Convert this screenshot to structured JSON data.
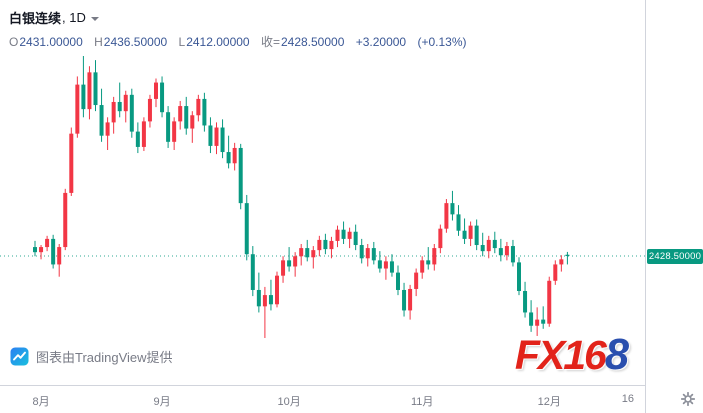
{
  "header": {
    "symbol": "白银连续",
    "interval_text": ", 1D",
    "ohlc": {
      "o_label": "O",
      "o_value": "2431.00000",
      "h_label": "H",
      "h_value": "2436.50000",
      "l_label": "L",
      "l_value": "2412.00000",
      "close_label": "收=",
      "close_value": "2428.50000",
      "change": "+3.20000",
      "change_pct": "(+0.13%)"
    }
  },
  "price_axis": {
    "last_label": "2428.50000"
  },
  "footer": {
    "attribution": "图表由TradingView提供"
  },
  "logo": {
    "red_part": "FX16",
    "blue_part": "8"
  },
  "theme": {
    "up_color": "#f23645",
    "down_color": "#089981",
    "value_text_color": "#3a5795",
    "muted_text_color": "#787b86",
    "axis_border_color": "#d1d4dc",
    "fx168_red": "#e2231a",
    "fx168_blue": "#2a4fae"
  },
  "chart_data": {
    "type": "candlestick",
    "title": "白银连续 1D",
    "xlabel": "",
    "ylabel": "",
    "legend": [],
    "grid": false,
    "up_color": "#f23645",
    "down_color": "#089981",
    "last_price": 2428.5,
    "last_price_label": "2428.50000",
    "price_range_estimate": [
      2268,
      2820
    ],
    "x_ticks": [
      {
        "label": "8月",
        "i": 1
      },
      {
        "label": "9月",
        "i": 21
      },
      {
        "label": "10月",
        "i": 42
      },
      {
        "label": "11月",
        "i": 64
      },
      {
        "label": "12月",
        "i": 85
      },
      {
        "label": "16",
        "i": 98
      }
    ],
    "candles": [
      [
        2446,
        2458,
        2428,
        2436
      ],
      [
        2436,
        2450,
        2422,
        2446
      ],
      [
        2446,
        2468,
        2438,
        2462
      ],
      [
        2462,
        2470,
        2404,
        2412
      ],
      [
        2412,
        2452,
        2388,
        2446
      ],
      [
        2446,
        2560,
        2440,
        2552
      ],
      [
        2552,
        2680,
        2546,
        2668
      ],
      [
        2668,
        2780,
        2660,
        2764
      ],
      [
        2764,
        2820,
        2700,
        2716
      ],
      [
        2716,
        2800,
        2696,
        2788
      ],
      [
        2788,
        2812,
        2712,
        2724
      ],
      [
        2724,
        2756,
        2652,
        2664
      ],
      [
        2664,
        2700,
        2636,
        2690
      ],
      [
        2690,
        2740,
        2668,
        2730
      ],
      [
        2730,
        2768,
        2700,
        2712
      ],
      [
        2712,
        2752,
        2690,
        2744
      ],
      [
        2744,
        2756,
        2660,
        2672
      ],
      [
        2672,
        2690,
        2630,
        2642
      ],
      [
        2642,
        2700,
        2634,
        2692
      ],
      [
        2692,
        2744,
        2680,
        2736
      ],
      [
        2736,
        2776,
        2720,
        2768
      ],
      [
        2768,
        2780,
        2700,
        2710
      ],
      [
        2710,
        2722,
        2640,
        2652
      ],
      [
        2652,
        2700,
        2636,
        2692
      ],
      [
        2692,
        2732,
        2676,
        2722
      ],
      [
        2722,
        2740,
        2666,
        2678
      ],
      [
        2678,
        2712,
        2650,
        2704
      ],
      [
        2704,
        2744,
        2692,
        2736
      ],
      [
        2736,
        2748,
        2672,
        2684
      ],
      [
        2684,
        2700,
        2630,
        2644
      ],
      [
        2644,
        2690,
        2628,
        2680
      ],
      [
        2680,
        2696,
        2620,
        2632
      ],
      [
        2632,
        2664,
        2600,
        2610
      ],
      [
        2610,
        2650,
        2596,
        2640
      ],
      [
        2640,
        2648,
        2520,
        2532
      ],
      [
        2532,
        2548,
        2420,
        2432
      ],
      [
        2432,
        2448,
        2350,
        2362
      ],
      [
        2362,
        2396,
        2318,
        2330
      ],
      [
        2330,
        2368,
        2268,
        2352
      ],
      [
        2352,
        2382,
        2322,
        2334
      ],
      [
        2334,
        2398,
        2328,
        2390
      ],
      [
        2390,
        2428,
        2376,
        2420
      ],
      [
        2420,
        2446,
        2398,
        2408
      ],
      [
        2408,
        2436,
        2388,
        2428
      ],
      [
        2428,
        2452,
        2410,
        2444
      ],
      [
        2444,
        2460,
        2418,
        2426
      ],
      [
        2426,
        2448,
        2404,
        2440
      ],
      [
        2440,
        2468,
        2428,
        2460
      ],
      [
        2460,
        2472,
        2432,
        2442
      ],
      [
        2442,
        2466,
        2424,
        2458
      ],
      [
        2458,
        2488,
        2446,
        2480
      ],
      [
        2480,
        2496,
        2452,
        2462
      ],
      [
        2462,
        2484,
        2444,
        2476
      ],
      [
        2476,
        2490,
        2440,
        2450
      ],
      [
        2450,
        2462,
        2414,
        2424
      ],
      [
        2424,
        2452,
        2408,
        2444
      ],
      [
        2444,
        2456,
        2412,
        2420
      ],
      [
        2420,
        2438,
        2396,
        2404
      ],
      [
        2404,
        2428,
        2382,
        2418
      ],
      [
        2418,
        2432,
        2388,
        2396
      ],
      [
        2396,
        2410,
        2352,
        2362
      ],
      [
        2362,
        2376,
        2310,
        2322
      ],
      [
        2322,
        2372,
        2304,
        2364
      ],
      [
        2364,
        2404,
        2350,
        2396
      ],
      [
        2396,
        2428,
        2384,
        2420
      ],
      [
        2420,
        2446,
        2402,
        2412
      ],
      [
        2412,
        2452,
        2400,
        2444
      ],
      [
        2444,
        2490,
        2434,
        2482
      ],
      [
        2482,
        2540,
        2474,
        2532
      ],
      [
        2532,
        2556,
        2498,
        2510
      ],
      [
        2510,
        2528,
        2468,
        2478
      ],
      [
        2478,
        2502,
        2452,
        2462
      ],
      [
        2462,
        2496,
        2448,
        2488
      ],
      [
        2488,
        2500,
        2440,
        2450
      ],
      [
        2450,
        2474,
        2428,
        2438
      ],
      [
        2438,
        2468,
        2424,
        2460
      ],
      [
        2460,
        2476,
        2434,
        2444
      ],
      [
        2444,
        2462,
        2418,
        2430
      ],
      [
        2430,
        2456,
        2420,
        2448
      ],
      [
        2448,
        2460,
        2408,
        2416
      ],
      [
        2416,
        2426,
        2352,
        2360
      ],
      [
        2360,
        2378,
        2308,
        2318
      ],
      [
        2318,
        2342,
        2280,
        2292
      ],
      [
        2292,
        2328,
        2272,
        2304
      ],
      [
        2304,
        2330,
        2286,
        2296
      ],
      [
        2296,
        2388,
        2290,
        2380
      ],
      [
        2380,
        2420,
        2372,
        2412
      ],
      [
        2412,
        2430,
        2398,
        2422
      ],
      [
        2431,
        2436.5,
        2412,
        2428.5
      ]
    ]
  }
}
